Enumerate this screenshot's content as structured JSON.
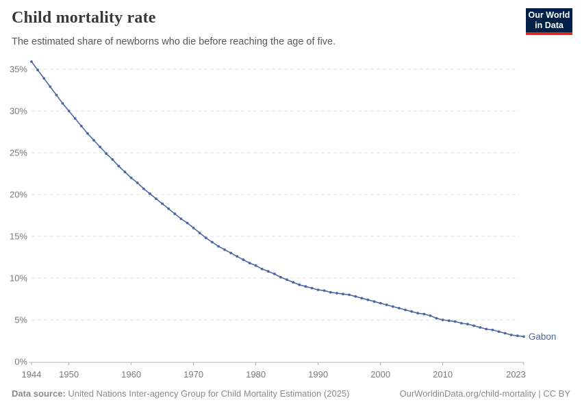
{
  "header": {
    "title": "Child mortality rate",
    "subtitle": "The estimated share of newborns who die before reaching the age of five.",
    "logo": {
      "line1": "Our World",
      "line2": "in Data"
    }
  },
  "footer": {
    "source_label": "Data source:",
    "source_text": " United Nations Inter-agency Group for Child Mortality Estimation (2025)",
    "link_text": "OurWorldinData.org/child-mortality | CC BY"
  },
  "chart_data": {
    "type": "line",
    "title": "Child mortality rate",
    "subtitle": "The estimated share of newborns who die before reaching the age of five.",
    "xlabel": "",
    "ylabel": "",
    "xlim": [
      1944,
      2023
    ],
    "ylim": [
      0,
      36.5
    ],
    "grid": "horizontal-dashed",
    "legend_position": "end-of-line-label",
    "x_ticks": [
      1944,
      1950,
      1960,
      1970,
      1980,
      1990,
      2000,
      2010,
      2023
    ],
    "y_ticks": [
      0,
      5,
      10,
      15,
      20,
      25,
      30,
      35
    ],
    "y_tick_suffix": "%",
    "line_color": "#4a67a3",
    "series": [
      {
        "name": "Gabon",
        "x": [
          1944,
          1945,
          1946,
          1947,
          1948,
          1949,
          1950,
          1951,
          1952,
          1953,
          1954,
          1955,
          1956,
          1957,
          1958,
          1959,
          1960,
          1961,
          1962,
          1963,
          1964,
          1965,
          1966,
          1967,
          1968,
          1969,
          1970,
          1971,
          1972,
          1973,
          1974,
          1975,
          1976,
          1977,
          1978,
          1979,
          1980,
          1981,
          1982,
          1983,
          1984,
          1985,
          1986,
          1987,
          1988,
          1989,
          1990,
          1991,
          1992,
          1993,
          1994,
          1995,
          1996,
          1997,
          1998,
          1999,
          2000,
          2001,
          2002,
          2003,
          2004,
          2005,
          2006,
          2007,
          2008,
          2009,
          2010,
          2011,
          2012,
          2013,
          2014,
          2015,
          2016,
          2017,
          2018,
          2019,
          2020,
          2021,
          2022,
          2023
        ],
        "y": [
          35.9,
          34.9,
          33.9,
          32.9,
          31.9,
          30.9,
          30.0,
          29.1,
          28.2,
          27.3,
          26.5,
          25.7,
          24.9,
          24.2,
          23.4,
          22.7,
          22.0,
          21.4,
          20.7,
          20.1,
          19.5,
          18.9,
          18.3,
          17.7,
          17.1,
          16.6,
          16.0,
          15.4,
          14.8,
          14.3,
          13.8,
          13.4,
          13.0,
          12.6,
          12.2,
          11.8,
          11.5,
          11.1,
          10.8,
          10.5,
          10.1,
          9.8,
          9.5,
          9.2,
          9.0,
          8.8,
          8.6,
          8.5,
          8.3,
          8.2,
          8.1,
          8.0,
          7.8,
          7.6,
          7.4,
          7.2,
          7.0,
          6.8,
          6.6,
          6.4,
          6.2,
          6.0,
          5.8,
          5.7,
          5.5,
          5.2,
          5.0,
          4.9,
          4.8,
          4.6,
          4.5,
          4.3,
          4.1,
          3.9,
          3.8,
          3.6,
          3.4,
          3.2,
          3.1,
          3.0
        ]
      }
    ]
  }
}
